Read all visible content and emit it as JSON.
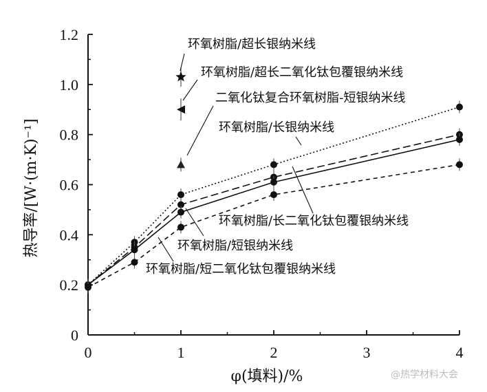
{
  "chart_data": {
    "type": "line",
    "title": "",
    "xlabel": "φ(填料)/%",
    "ylabel": "热导率/[W·(m·K)⁻¹]",
    "xlim": [
      0,
      4
    ],
    "ylim": [
      0,
      1.2
    ],
    "xticks": [
      "0",
      "1",
      "2",
      "3",
      "4"
    ],
    "yticks": [
      "0",
      "0.2",
      "0.4",
      "0.6",
      "0.8",
      "1.0",
      "1.2"
    ],
    "grid": false,
    "series": [
      {
        "name": "环氧树脂/超长银纳米线",
        "marker": "star",
        "style": "none",
        "x": [
          0,
          1
        ],
        "y": [
          0.2,
          1.03
        ]
      },
      {
        "name": "环氧树脂/超长二氧化钛包覆银纳米线",
        "marker": "triangle-left",
        "style": "none",
        "x": [
          0,
          1
        ],
        "y": [
          0.2,
          0.9
        ]
      },
      {
        "name": "二氧化钛复合环氧树脂-短银纳米线",
        "marker": "triangle",
        "style": "none",
        "x": [
          0,
          1
        ],
        "y": [
          0.2,
          0.68
        ]
      },
      {
        "name": "环氧树脂/长银纳米线",
        "marker": "circle",
        "style": "dotted",
        "x": [
          0,
          0.5,
          1,
          2,
          4
        ],
        "y": [
          0.2,
          0.37,
          0.56,
          0.68,
          0.91
        ]
      },
      {
        "name": "环氧树脂/长二氧化钛包覆银纳米线",
        "marker": "circle",
        "style": "dashed",
        "x": [
          0,
          0.5,
          1,
          2,
          4
        ],
        "y": [
          0.2,
          0.35,
          0.52,
          0.63,
          0.8
        ]
      },
      {
        "name": "环氧树脂/短银纳米线",
        "marker": "circle",
        "style": "solid",
        "x": [
          0,
          0.5,
          1,
          2,
          4
        ],
        "y": [
          0.2,
          0.34,
          0.49,
          0.61,
          0.78
        ]
      },
      {
        "name": "环氧树脂/短二氧化钛包覆银纳米线",
        "marker": "circle",
        "style": "short-dashed",
        "x": [
          0,
          0.5,
          1,
          2,
          4
        ],
        "y": [
          0.19,
          0.29,
          0.43,
          0.56,
          0.68
        ]
      }
    ]
  },
  "watermark": "@热学材料大会"
}
